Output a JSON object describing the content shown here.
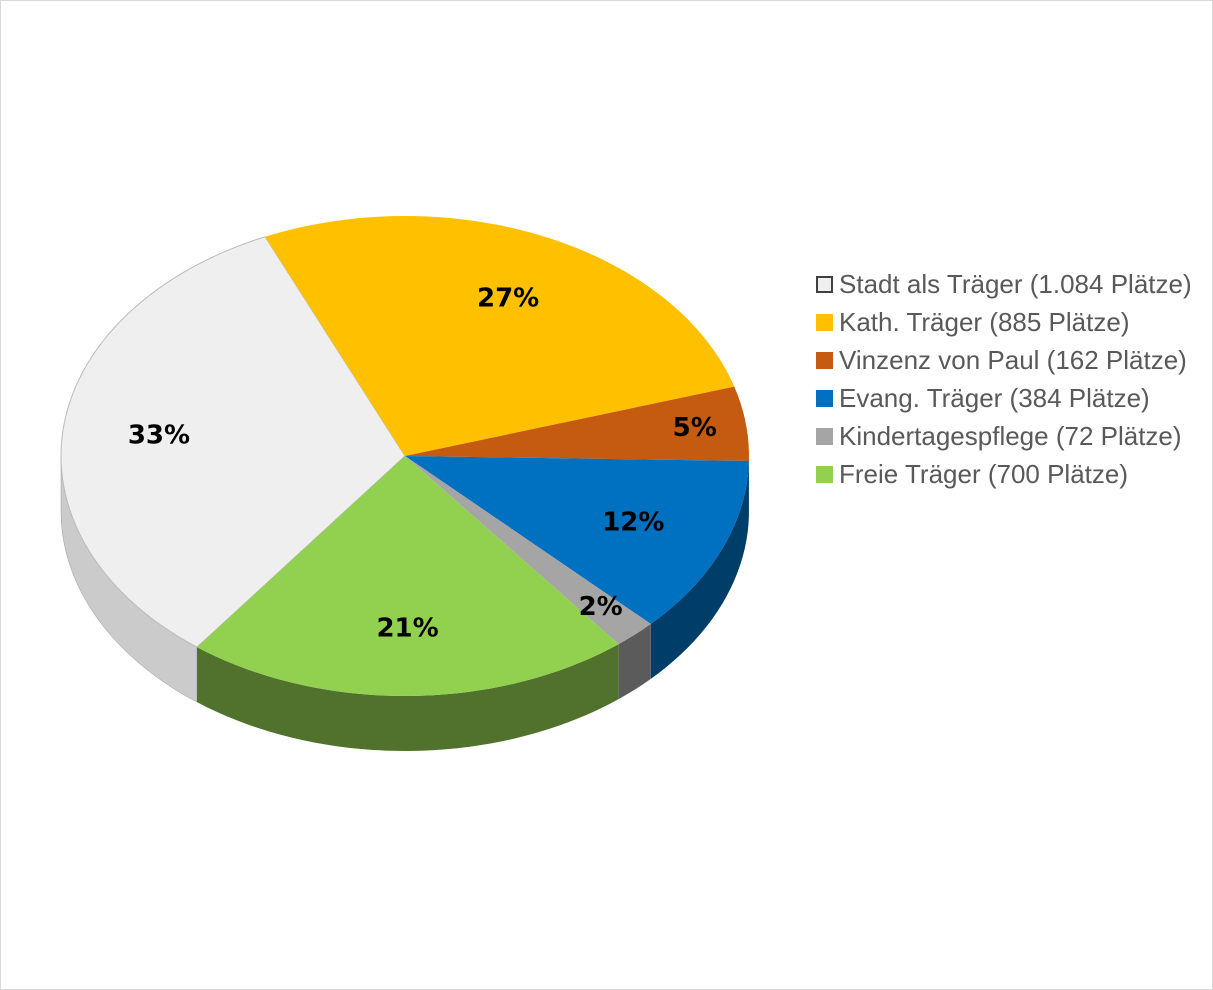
{
  "chart_data": {
    "type": "pie",
    "categories": [
      "Stadt als Träger (1.084 Plätze)",
      "Kath. Träger (885 Plätze)",
      "Vinzenz von Paul (162 Plätze)",
      "Evang. Träger (384 Plätze)",
      "Kindertagespflege (72 Plätze)",
      "Freie Träger (700 Plätze)"
    ],
    "values": [
      33,
      27,
      5,
      12,
      2,
      21
    ],
    "value_labels": [
      "33%",
      "27%",
      "5%",
      "12%",
      "2%",
      "21%"
    ],
    "colors": [
      "#efefef",
      "#ffc000",
      "#c55a11",
      "#0070c0",
      "#a5a5a5",
      "#92d050"
    ],
    "legend": "right"
  }
}
